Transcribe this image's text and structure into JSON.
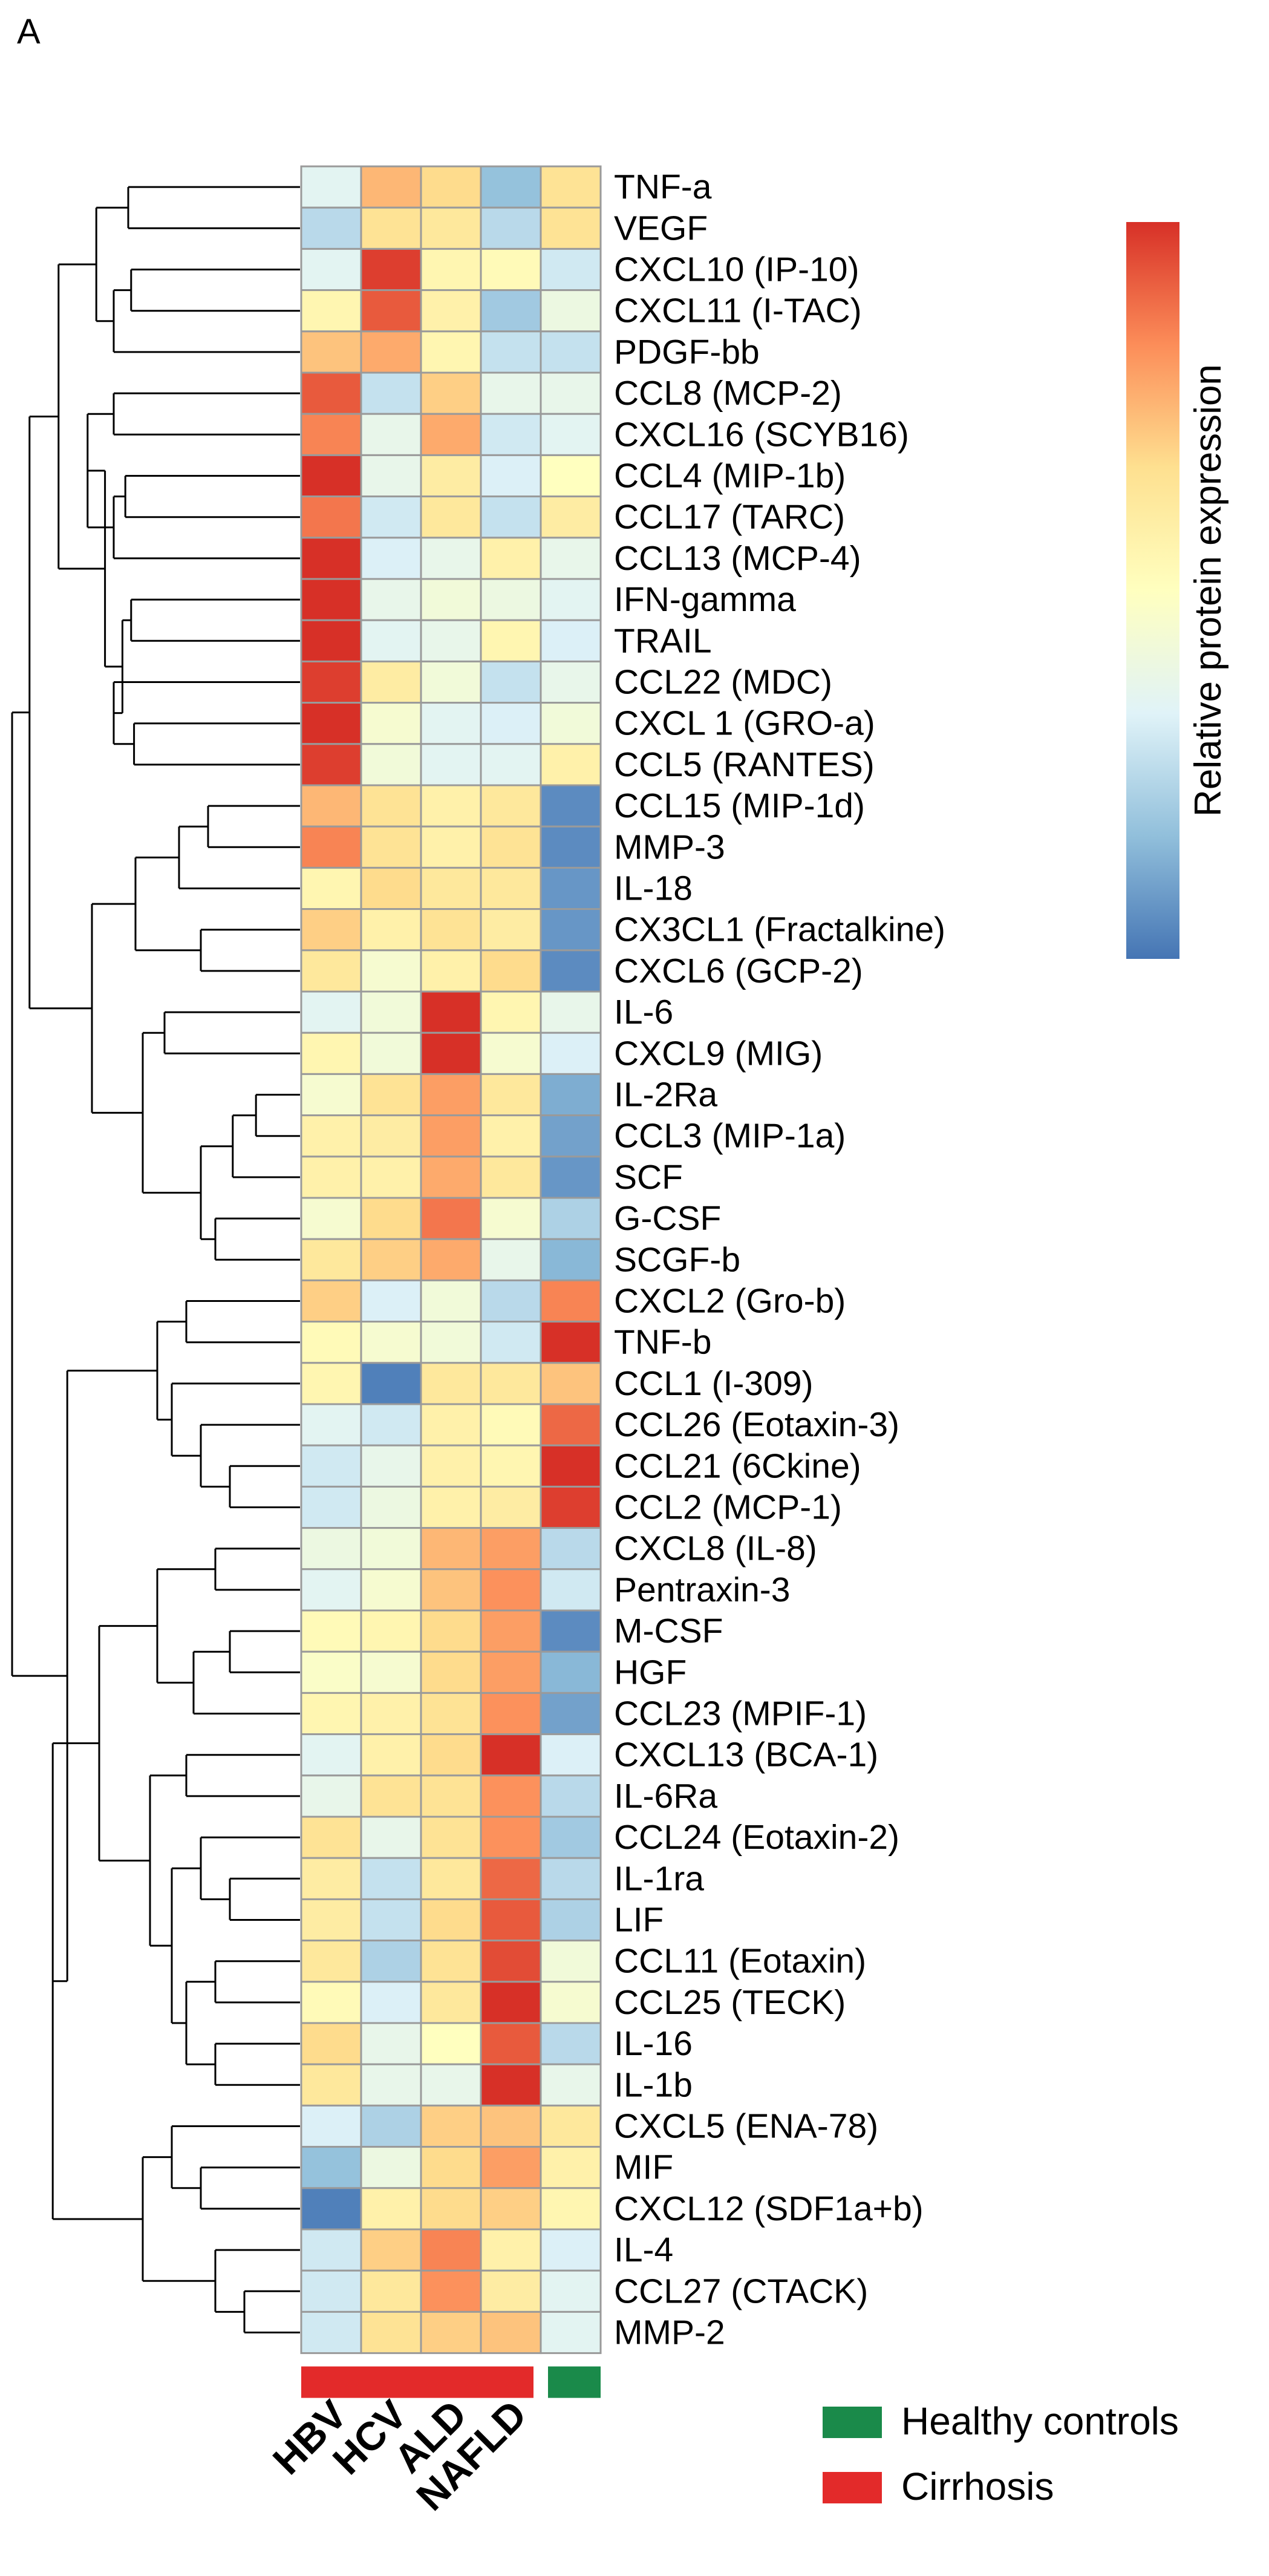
{
  "panel_label": "A",
  "chart_data": {
    "type": "heatmap",
    "title": "",
    "columns": [
      "HBV",
      "HCV",
      "ALD",
      "NAFLD",
      "Healthy"
    ],
    "column_labels": [
      "HBV",
      "HCV",
      "ALD",
      "NAFLD"
    ],
    "value_range": [
      -2,
      2
    ],
    "colorbar": {
      "label": "Relative protein expression",
      "colors": [
        "#4575b4",
        "#91bfdb",
        "#e0f3f8",
        "#ffffbf",
        "#fee090",
        "#fc8d59",
        "#d73027"
      ]
    },
    "legend": {
      "position": "bottom-right",
      "items": [
        {
          "label": "Healthy controls",
          "color": "#1a8a4a"
        },
        {
          "label": "Cirrhosis",
          "color": "#e32a2a"
        }
      ]
    },
    "column_groups": [
      {
        "group": "Cirrhosis",
        "color": "#e32a2a",
        "columns": [
          "HBV",
          "HCV",
          "ALD",
          "NAFLD"
        ]
      },
      {
        "group": "Healthy controls",
        "color": "#1a8a4a",
        "columns": [
          "Healthy"
        ]
      }
    ],
    "rows": [
      "TNF-a",
      "VEGF",
      "CXCL10 (IP-10)",
      "CXCL11 (I-TAC)",
      "PDGF-bb",
      "CCL8 (MCP-2)",
      "CXCL16 (SCYB16)",
      "CCL4 (MIP-1b)",
      "CCL17 (TARC)",
      "CCL13 (MCP-4)",
      "IFN-gamma",
      "TRAIL",
      "CCL22 (MDC)",
      "CXCL 1 (GRO-a)",
      "CCL5 (RANTES)",
      "CCL15 (MIP-1d)",
      "MMP-3",
      "IL-18",
      "CX3CL1 (Fractalkine)",
      "CXCL6 (GCP-2)",
      "IL-6",
      "CXCL9 (MIG)",
      "IL-2Ra",
      "CCL3 (MIP-1a)",
      "SCF",
      "G-CSF",
      "SCGF-b",
      "CXCL2 (Gro-b)",
      "TNF-b",
      "CCL1 (I-309)",
      "CCL26 (Eotaxin-3)",
      "CCL21 (6Ckine)",
      "CCL2 (MCP-1)",
      "CXCL8 (IL-8)",
      "Pentraxin-3",
      "M-CSF",
      "HGF",
      "CCL23 (MPIF-1)",
      "CXCL13 (BCA-1)",
      "IL-6Ra",
      "CCL24 (Eotaxin-2)",
      "IL-1ra",
      "LIF",
      "CCL11 (Eotaxin)",
      "CCL25 (TECK)",
      "IL-16",
      "IL-1b",
      "CXCL5 (ENA-78)",
      "MIF",
      "CXCL12 (SDF1a+b)",
      "IL-4",
      "CCL27 (CTACK)",
      "MMP-2"
    ],
    "values": [
      [
        -0.6,
        1.0,
        0.7,
        -1.3,
        0.6
      ],
      [
        -1.0,
        0.6,
        0.5,
        -1.0,
        0.6
      ],
      [
        -0.6,
        1.9,
        0.2,
        0.1,
        -0.8
      ],
      [
        0.2,
        1.7,
        0.3,
        -1.2,
        -0.4
      ],
      [
        0.9,
        1.1,
        0.2,
        -0.9,
        -0.9
      ],
      [
        1.7,
        -0.9,
        0.8,
        -0.5,
        -0.5
      ],
      [
        1.4,
        -0.5,
        1.1,
        -0.8,
        -0.6
      ],
      [
        2.0,
        -0.5,
        0.4,
        -0.7,
        0.0
      ],
      [
        1.5,
        -0.8,
        0.5,
        -0.9,
        0.4
      ],
      [
        2.0,
        -0.7,
        -0.5,
        0.3,
        -0.5
      ],
      [
        2.1,
        -0.5,
        -0.3,
        -0.4,
        -0.6
      ],
      [
        2.1,
        -0.6,
        -0.5,
        0.2,
        -0.7
      ],
      [
        1.9,
        0.4,
        -0.3,
        -0.9,
        -0.5
      ],
      [
        2.2,
        -0.2,
        -0.6,
        -0.7,
        -0.3
      ],
      [
        1.9,
        -0.3,
        -0.6,
        -0.6,
        0.3
      ],
      [
        1.0,
        0.6,
        0.3,
        0.5,
        -1.8
      ],
      [
        1.4,
        0.6,
        0.3,
        0.6,
        -1.8
      ],
      [
        0.2,
        0.7,
        0.5,
        0.5,
        -1.7
      ],
      [
        0.8,
        0.3,
        0.6,
        0.4,
        -1.7
      ],
      [
        0.5,
        -0.2,
        0.3,
        0.7,
        -1.8
      ],
      [
        -0.6,
        -0.3,
        2.1,
        0.2,
        -0.5
      ],
      [
        0.2,
        -0.3,
        2.1,
        -0.2,
        -0.7
      ],
      [
        -0.2,
        0.6,
        1.2,
        0.5,
        -1.5
      ],
      [
        0.3,
        0.4,
        1.2,
        0.3,
        -1.6
      ],
      [
        0.3,
        0.3,
        1.1,
        0.5,
        -1.7
      ],
      [
        -0.2,
        0.7,
        1.5,
        -0.2,
        -1.1
      ],
      [
        0.5,
        0.8,
        1.1,
        -0.5,
        -1.4
      ],
      [
        0.8,
        -0.7,
        -0.3,
        -1.0,
        1.4
      ],
      [
        0.1,
        -0.2,
        -0.3,
        -0.8,
        2.1
      ],
      [
        0.2,
        -1.9,
        0.5,
        0.5,
        0.9
      ],
      [
        -0.6,
        -0.8,
        0.3,
        0.1,
        1.6
      ],
      [
        -0.8,
        -0.5,
        0.3,
        0.2,
        2.0
      ],
      [
        -0.8,
        -0.4,
        0.3,
        0.4,
        1.9
      ],
      [
        -0.4,
        -0.3,
        1.0,
        1.2,
        -1.0
      ],
      [
        -0.6,
        -0.2,
        0.9,
        1.3,
        -0.8
      ],
      [
        0.1,
        0.2,
        0.7,
        1.2,
        -1.8
      ],
      [
        -0.1,
        -0.2,
        0.7,
        1.2,
        -1.4
      ],
      [
        0.2,
        0.3,
        0.6,
        1.3,
        -1.6
      ],
      [
        -0.6,
        0.3,
        0.7,
        2.1,
        -0.7
      ],
      [
        -0.5,
        0.6,
        0.6,
        1.3,
        -1.0
      ],
      [
        0.6,
        -0.5,
        0.6,
        1.3,
        -1.2
      ],
      [
        0.4,
        -0.9,
        0.5,
        1.6,
        -1.0
      ],
      [
        0.4,
        -0.9,
        0.7,
        1.7,
        -1.1
      ],
      [
        0.5,
        -1.1,
        0.6,
        1.8,
        -0.3
      ],
      [
        0.1,
        -0.7,
        0.5,
        2.3,
        -0.2
      ],
      [
        0.7,
        -0.5,
        0.0,
        1.7,
        -1.0
      ],
      [
        0.5,
        -0.5,
        -0.5,
        2.0,
        -0.5
      ],
      [
        -0.7,
        -1.1,
        0.8,
        0.9,
        0.5
      ],
      [
        -1.3,
        -0.4,
        0.7,
        1.2,
        0.3
      ],
      [
        -1.9,
        0.3,
        0.7,
        0.8,
        0.2
      ],
      [
        -0.8,
        0.8,
        1.4,
        0.3,
        -0.7
      ],
      [
        -0.8,
        0.5,
        1.3,
        0.4,
        -0.6
      ],
      [
        -0.8,
        0.6,
        0.8,
        0.9,
        -0.6
      ]
    ]
  }
}
